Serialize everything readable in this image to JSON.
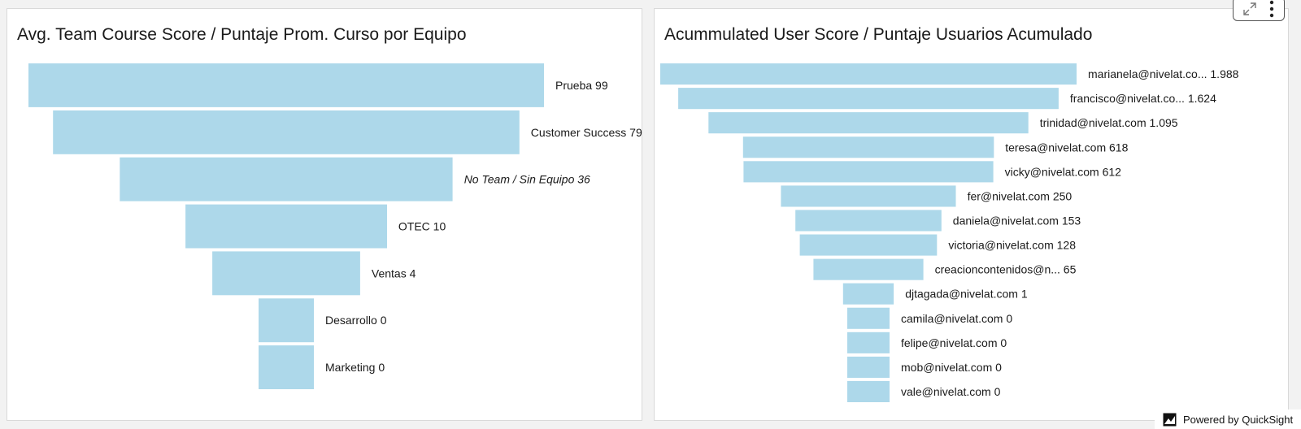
{
  "panels": [
    {
      "title": "Avg. Team Course Score / Puntaje Prom. Curso por Equipo"
    },
    {
      "title": "Acummulated User Score / Puntaje Usuarios Acumulado"
    }
  ],
  "toolbar": {
    "expand_icon": "expand-arrows-icon",
    "menu_icon": "vertical-dots-icon"
  },
  "footer": {
    "powered_by": "Powered by QuickSight",
    "logo_icon": "quicksight-logo-icon"
  },
  "colors": {
    "bar": "#add8ea",
    "text": "#1a1a1a",
    "panel_border": "#d9d9d9",
    "background": "#f2f2f2"
  },
  "chart_data": [
    {
      "type": "funnel",
      "title": "Avg. Team Course Score / Puntaje Prom. Curso por Equipo",
      "categories": [
        "Prueba",
        "Customer Success",
        "No Team / Sin Equipo",
        "OTEC",
        "Ventas",
        "Desarrollo",
        "Marketing"
      ],
      "values": [
        99,
        79,
        36,
        10,
        4,
        0,
        0
      ],
      "value_labels": [
        "99",
        "79",
        "36",
        "10",
        "4",
        "0",
        "0"
      ],
      "italic_categories": [
        "No Team / Sin Equipo"
      ]
    },
    {
      "type": "funnel",
      "title": "Acummulated User Score / Puntaje Usuarios Acumulado",
      "categories": [
        "marianela@nivelat.co...",
        "francisco@nivelat.co...",
        "trinidad@nivelat.com",
        "teresa@nivelat.com",
        "vicky@nivelat.com",
        "fer@nivelat.com",
        "daniela@nivelat.com",
        "victoria@nivelat.com",
        "creacioncontenidos@n...",
        "djtagada@nivelat.com",
        "camila@nivelat.com",
        "felipe@nivelat.com",
        "mob@nivelat.com",
        "vale@nivelat.com"
      ],
      "values": [
        1988,
        1624,
        1095,
        618,
        612,
        250,
        153,
        128,
        65,
        1,
        0,
        0,
        0,
        0
      ],
      "value_labels": [
        "1.988",
        "1.624",
        "1.095",
        "618",
        "612",
        "250",
        "153",
        "128",
        "65",
        "1",
        "0",
        "0",
        "0",
        "0"
      ]
    }
  ]
}
